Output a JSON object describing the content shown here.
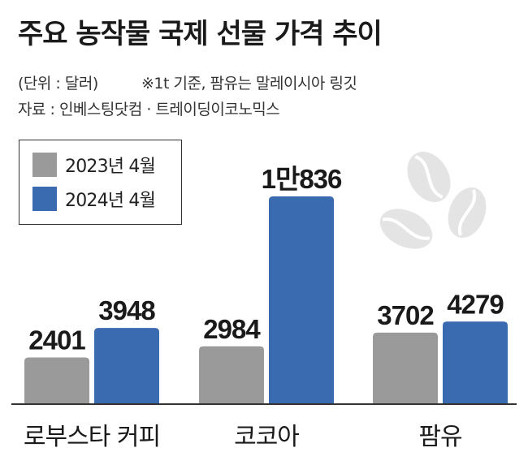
{
  "title": "주요 농작물 국제 선물 가격 추이",
  "unit_note": "(단위 : 달러)",
  "footnote": "※1t 기준, 팜유는 말레이시아 링깃",
  "source": "자료 : 인베스팅닷컴 · 트레이딩이코노믹스",
  "colors": {
    "y2023": "#9a9a9a",
    "y2024": "#3a6ab0",
    "baseline": "#333333",
    "beans": "#e4e4e4"
  },
  "legend": [
    {
      "label": "2023년 4월"
    },
    {
      "label": "2024년 4월"
    }
  ],
  "chart_data": {
    "type": "bar",
    "title": "주요 농작물 국제 선물 가격 추이",
    "categories": [
      "로부스타 커피",
      "코코아",
      "팜유"
    ],
    "series": [
      {
        "name": "2023년 4월",
        "values": [
          2401,
          2984,
          3702
        ],
        "labels": [
          "2401",
          "2984",
          "3702"
        ]
      },
      {
        "name": "2024년 4월",
        "values": [
          3948,
          10836,
          4279
        ],
        "labels": [
          "3948",
          "1만836",
          "4279"
        ]
      }
    ],
    "xlabel": "",
    "ylabel": "달러",
    "ylim": [
      0,
      10836
    ],
    "grid": false,
    "legend_position": "top-left"
  }
}
